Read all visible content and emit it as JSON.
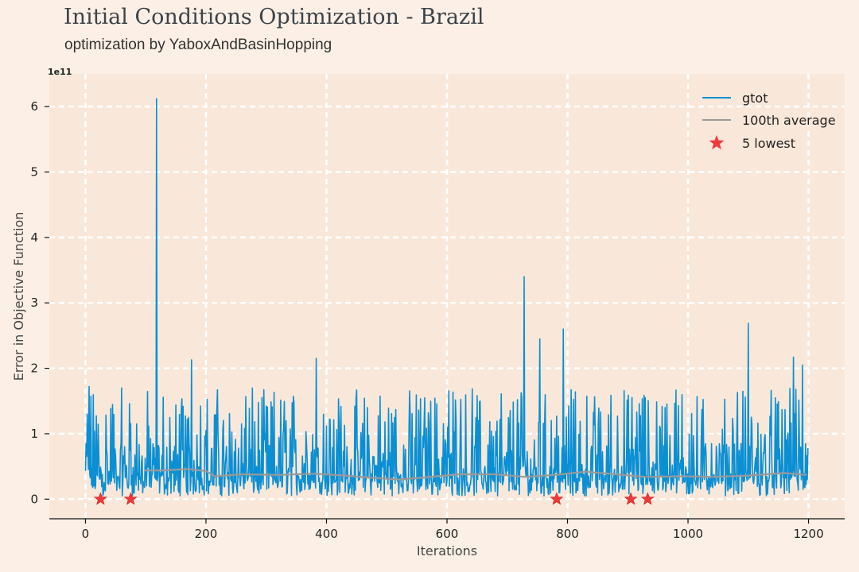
{
  "header": {
    "title": "Initial Conditions Optimization - Brazil",
    "subtitle": "optimization by YaboxAndBasinHopping"
  },
  "chart_data": {
    "type": "line",
    "title": "Initial Conditions Optimization - Brazil",
    "subtitle": "optimization by YaboxAndBasinHopping",
    "xlabel": "Iterations",
    "ylabel": "Error in Objective Function",
    "y_scale_label": "1e11",
    "xlim": [
      -60,
      1260
    ],
    "ylim": [
      -0.3,
      6.5
    ],
    "xticks": [
      0,
      200,
      400,
      600,
      800,
      1000,
      1200
    ],
    "yticks": [
      0,
      1,
      2,
      3,
      4,
      5,
      6
    ],
    "grid": true,
    "legend_position": "top-right",
    "n_iterations": 1200,
    "series": [
      {
        "name": "gtot",
        "color": "#0a8fd4",
        "note": "noisy per-iteration error values, mostly between 0.05 and 1.7 with peaks",
        "peaks": [
          {
            "x": 3,
            "y": 1.3
          },
          {
            "x": 6,
            "y": 1.72
          },
          {
            "x": 60,
            "y": 1.7
          },
          {
            "x": 118,
            "y": 6.12
          },
          {
            "x": 176,
            "y": 2.13
          },
          {
            "x": 383,
            "y": 2.15
          },
          {
            "x": 728,
            "y": 3.4
          },
          {
            "x": 754,
            "y": 2.45
          },
          {
            "x": 793,
            "y": 2.6
          },
          {
            "x": 1100,
            "y": 2.69
          },
          {
            "x": 1175,
            "y": 2.17
          },
          {
            "x": 1190,
            "y": 2.05
          }
        ]
      },
      {
        "name": "100th average",
        "color": "#999999",
        "points": [
          {
            "x": 98,
            "y": 0.44
          },
          {
            "x": 130,
            "y": 0.44
          },
          {
            "x": 170,
            "y": 0.46
          },
          {
            "x": 200,
            "y": 0.43
          },
          {
            "x": 215,
            "y": 0.35
          },
          {
            "x": 260,
            "y": 0.38
          },
          {
            "x": 320,
            "y": 0.37
          },
          {
            "x": 380,
            "y": 0.39
          },
          {
            "x": 430,
            "y": 0.36
          },
          {
            "x": 470,
            "y": 0.33
          },
          {
            "x": 520,
            "y": 0.3
          },
          {
            "x": 560,
            "y": 0.33
          },
          {
            "x": 620,
            "y": 0.38
          },
          {
            "x": 680,
            "y": 0.38
          },
          {
            "x": 730,
            "y": 0.34
          },
          {
            "x": 780,
            "y": 0.37
          },
          {
            "x": 830,
            "y": 0.42
          },
          {
            "x": 880,
            "y": 0.38
          },
          {
            "x": 930,
            "y": 0.34
          },
          {
            "x": 990,
            "y": 0.35
          },
          {
            "x": 1040,
            "y": 0.34
          },
          {
            "x": 1100,
            "y": 0.36
          },
          {
            "x": 1160,
            "y": 0.4
          },
          {
            "x": 1197,
            "y": 0.37
          }
        ]
      },
      {
        "name": "5 lowest",
        "color": "#f03a3a",
        "points": [
          {
            "x": 25,
            "y": 0.0
          },
          {
            "x": 75,
            "y": 0.0
          },
          {
            "x": 782,
            "y": 0.0
          },
          {
            "x": 905,
            "y": 0.0
          },
          {
            "x": 933,
            "y": 0.0
          }
        ]
      }
    ]
  }
}
